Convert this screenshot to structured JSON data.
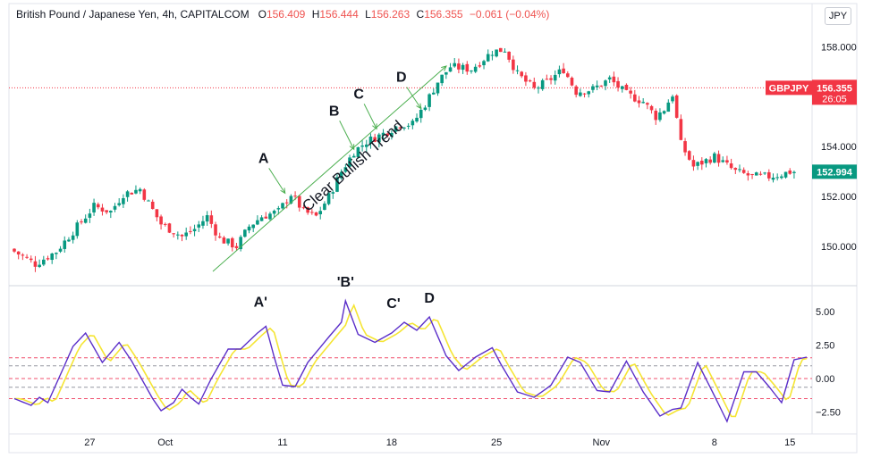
{
  "header": {
    "instrument": "British Pound / Japanese Yen, 4h, CAPITALCOM",
    "ohlc": [
      {
        "k": "O",
        "v": "156.409"
      },
      {
        "k": "H",
        "v": "156.444"
      },
      {
        "k": "L",
        "v": "156.263"
      },
      {
        "k": "C",
        "v": "156.355"
      }
    ],
    "change": "−0.061 (−0.04%)",
    "currency": "JPY"
  },
  "price_badge": {
    "symbol": "GBPJPY",
    "price": "156.355",
    "countdown": "26:05",
    "color": "#f23645"
  },
  "last_badge": {
    "price": "152.994",
    "color": "#089981"
  },
  "colors": {
    "up": "#089981",
    "down": "#f23645",
    "osc_main": "#5b2fc9",
    "osc_signal": "#f5e534",
    "arrow": "#4caf50",
    "level_red": "#f0506e",
    "level_gray": "#9598a1"
  },
  "chart_data": [
    {
      "type": "candlestick",
      "y_axis_ticks": [
        "150.000",
        "152.000",
        "154.000",
        "156.000",
        "158.000"
      ],
      "ylim": [
        148.5,
        158.8
      ],
      "x_tick_labels": [
        "27",
        "Oct",
        "11",
        "18",
        "25",
        "Nov",
        "8",
        "15"
      ],
      "grid": false,
      "close_path": [
        [
          0,
          149.9
        ],
        [
          6,
          149.3
        ],
        [
          11,
          149.8
        ],
        [
          17,
          151.0
        ],
        [
          20,
          151.6
        ],
        [
          24,
          151.4
        ],
        [
          27,
          152.1
        ],
        [
          31,
          152.3
        ],
        [
          36,
          150.9
        ],
        [
          41,
          150.4
        ],
        [
          44,
          150.7
        ],
        [
          47,
          151.2
        ],
        [
          50,
          150.3
        ],
        [
          54,
          150.0
        ],
        [
          57,
          150.8
        ],
        [
          60,
          151.2
        ],
        [
          64,
          151.4
        ],
        [
          67,
          152.1
        ],
        [
          70,
          151.4
        ],
        [
          73,
          151.2
        ],
        [
          76,
          152.0
        ],
        [
          79,
          153.0
        ],
        [
          82,
          153.8
        ],
        [
          85,
          154.2
        ],
        [
          90,
          154.6
        ],
        [
          93,
          154.9
        ],
        [
          96,
          154.9
        ],
        [
          99,
          155.7
        ],
        [
          102,
          156.6
        ],
        [
          105,
          157.2
        ],
        [
          110,
          157.1
        ],
        [
          115,
          157.8
        ],
        [
          118,
          157.9
        ],
        [
          121,
          156.9
        ],
        [
          125,
          156.3
        ],
        [
          128,
          156.6
        ],
        [
          132,
          157.1
        ],
        [
          135,
          156.2
        ],
        [
          139,
          156.3
        ],
        [
          143,
          156.7
        ],
        [
          147,
          156.1
        ],
        [
          151,
          155.8
        ],
        [
          154,
          155.2
        ],
        [
          156,
          155.5
        ],
        [
          158,
          156.1
        ],
        [
          160,
          154.1
        ],
        [
          163,
          153.2
        ],
        [
          168,
          153.6
        ],
        [
          173,
          153.0
        ],
        [
          177,
          152.8
        ],
        [
          181,
          152.8
        ],
        [
          184,
          152.9
        ],
        [
          186,
          152.99
        ]
      ],
      "annotations": [
        {
          "label": "A",
          "near_index": 65
        },
        {
          "label": "B",
          "near_index": 81
        },
        {
          "label": "C",
          "near_index": 86
        },
        {
          "label": "D",
          "near_index": 97
        },
        {
          "label": "Clear Bullish Trend"
        }
      ]
    },
    {
      "type": "line",
      "y_axis_ticks": [
        "5.00",
        "2.50",
        "0.00",
        "−2.50"
      ],
      "ylim": [
        -3.6,
        6.8
      ],
      "levels": [
        1.55,
        0.95,
        0.0,
        -0.65,
        -1.5
      ],
      "main_path": [
        [
          0,
          -1.5
        ],
        [
          4,
          -2.0
        ],
        [
          6,
          -1.4
        ],
        [
          8,
          -1.8
        ],
        [
          14,
          2.4
        ],
        [
          17,
          3.4
        ],
        [
          21,
          1.2
        ],
        [
          25,
          2.7
        ],
        [
          28,
          1.3
        ],
        [
          33,
          -1.5
        ],
        [
          35,
          -2.4
        ],
        [
          38,
          -1.8
        ],
        [
          40,
          -0.8
        ],
        [
          42,
          -1.4
        ],
        [
          44,
          -1.9
        ],
        [
          47,
          0.0
        ],
        [
          51,
          2.2
        ],
        [
          54,
          2.2
        ],
        [
          58,
          3.4
        ],
        [
          60,
          3.9
        ],
        [
          62,
          1.6
        ],
        [
          64,
          -0.5
        ],
        [
          67,
          -0.6
        ],
        [
          70,
          1.2
        ],
        [
          75,
          3.1
        ],
        [
          78,
          4.2
        ],
        [
          79,
          5.8
        ],
        [
          82,
          3.3
        ],
        [
          86,
          2.7
        ],
        [
          90,
          3.4
        ],
        [
          93,
          4.2
        ],
        [
          96,
          3.6
        ],
        [
          99,
          4.6
        ],
        [
          103,
          1.7
        ],
        [
          106,
          0.6
        ],
        [
          110,
          1.6
        ],
        [
          114,
          2.3
        ],
        [
          116,
          1.1
        ],
        [
          120,
          -1.0
        ],
        [
          124,
          -1.4
        ],
        [
          128,
          -0.5
        ],
        [
          132,
          1.6
        ],
        [
          135,
          1.2
        ],
        [
          139,
          -0.9
        ],
        [
          142,
          -1.0
        ],
        [
          146,
          1.3
        ],
        [
          150,
          -1.0
        ],
        [
          154,
          -2.8
        ],
        [
          157,
          -2.3
        ],
        [
          159,
          -2.2
        ],
        [
          163,
          1.2
        ],
        [
          167,
          -1.3
        ],
        [
          170,
          -3.2
        ],
        [
          174,
          0.5
        ],
        [
          177,
          0.5
        ],
        [
          180,
          -0.6
        ],
        [
          183,
          -1.8
        ],
        [
          186,
          1.4
        ],
        [
          189,
          1.6
        ]
      ],
      "annotations": [
        {
          "label": "A'",
          "near_index": 60
        },
        {
          "label": "'B'",
          "near_index": 79
        },
        {
          "label": "C'",
          "near_index": 93
        },
        {
          "label": "D",
          "near_index": 99
        }
      ]
    }
  ]
}
